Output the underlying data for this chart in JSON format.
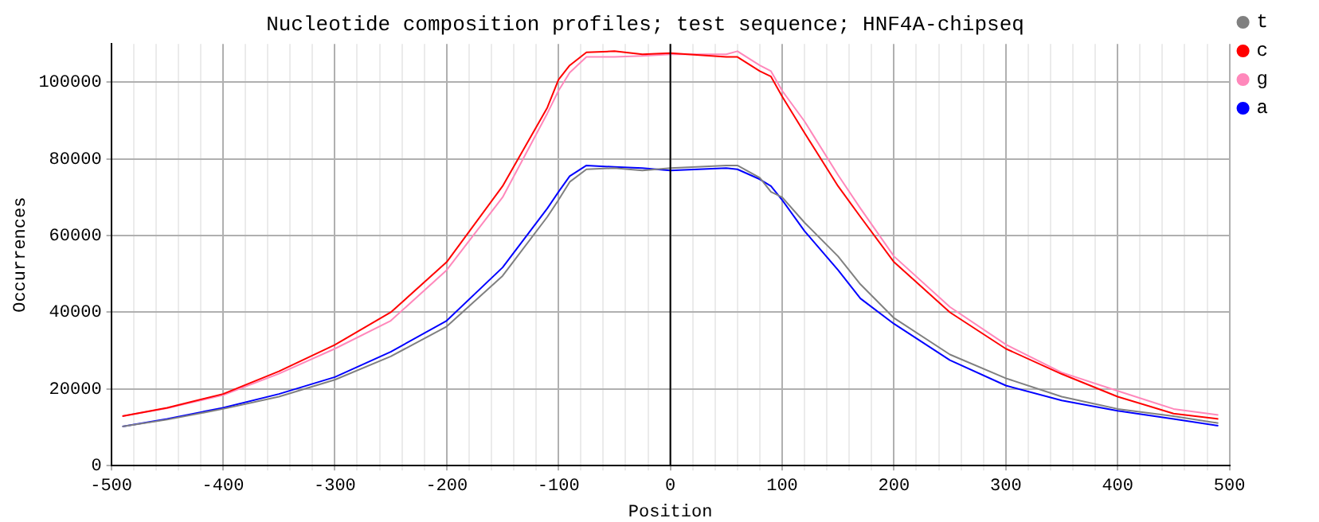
{
  "chart_data": {
    "type": "line",
    "title": "Nucleotide composition profiles; test sequence; HNF4A-chipseq",
    "xlabel": "Position",
    "ylabel": "Occurrences",
    "x": [
      -490,
      -450,
      -400,
      -350,
      -300,
      -250,
      -200,
      -150,
      -110,
      -100,
      -90,
      -75,
      -50,
      -25,
      0,
      50,
      60,
      80,
      90,
      100,
      120,
      150,
      170,
      200,
      250,
      300,
      350,
      400,
      450,
      490
    ],
    "series": [
      {
        "name": "t",
        "color": "#808080",
        "values": [
          10200,
          12000,
          14800,
          18000,
          22400,
          28500,
          36300,
          49500,
          64900,
          69300,
          74000,
          77300,
          77600,
          77000,
          77600,
          78300,
          78300,
          75100,
          71400,
          70000,
          63400,
          54600,
          47300,
          38500,
          29000,
          22800,
          18000,
          14800,
          12900,
          11100
        ]
      },
      {
        "name": "c",
        "color": "#ff0000",
        "values": [
          12900,
          15100,
          18700,
          24600,
          31500,
          40000,
          53100,
          72900,
          93400,
          100700,
          104400,
          107800,
          108100,
          107300,
          107600,
          106600,
          106600,
          102900,
          101500,
          96300,
          86800,
          72900,
          64900,
          53100,
          40000,
          30500,
          23900,
          18000,
          13600,
          12200
        ]
      },
      {
        "name": "g",
        "color": "#ff88bb",
        "values": [
          12900,
          15000,
          18400,
          24000,
          30500,
          37800,
          51000,
          70000,
          91900,
          97800,
          102500,
          106600,
          106600,
          106900,
          107300,
          107300,
          108100,
          104400,
          102900,
          97800,
          89800,
          75800,
          67100,
          54600,
          41400,
          31600,
          24300,
          19500,
          14800,
          13200
        ]
      },
      {
        "name": "a",
        "color": "#0000ff",
        "values": [
          10200,
          12200,
          15100,
          18700,
          23100,
          29700,
          37800,
          51700,
          67100,
          71400,
          75500,
          78300,
          77900,
          77600,
          77000,
          77600,
          77300,
          74700,
          72900,
          69300,
          61200,
          51000,
          43600,
          37000,
          27500,
          20900,
          17000,
          14300,
          12200,
          10400
        ]
      }
    ],
    "xlim": [
      -500,
      500
    ],
    "xticks": [
      -500,
      {
        "value": -480,
        "label": null
      },
      {
        "value": -460,
        "label": null
      },
      {
        "value": -440,
        "label": null
      },
      {
        "value": -420,
        "label": null
      },
      -400,
      {
        "value": -380,
        "label": null
      },
      {
        "value": -360,
        "label": null
      },
      {
        "value": -340,
        "label": null
      },
      {
        "value": -320,
        "label": null
      },
      -300,
      {
        "value": -280,
        "label": null
      },
      {
        "value": -260,
        "label": null
      },
      {
        "value": -240,
        "label": null
      },
      {
        "value": -220,
        "label": null
      },
      -200,
      {
        "value": -180,
        "label": null
      },
      {
        "value": -160,
        "label": null
      },
      {
        "value": -140,
        "label": null
      },
      {
        "value": -120,
        "label": null
      },
      -100,
      {
        "value": -80,
        "label": null
      },
      {
        "value": -60,
        "label": null
      },
      {
        "value": -40,
        "label": null
      },
      {
        "value": -20,
        "label": null
      },
      0,
      {
        "value": 20,
        "label": null
      },
      {
        "value": 40,
        "label": null
      },
      {
        "value": 60,
        "label": null
      },
      {
        "value": 80,
        "label": null
      },
      100,
      {
        "value": 120,
        "label": null
      },
      {
        "value": 140,
        "label": null
      },
      {
        "value": 160,
        "label": null
      },
      {
        "value": 180,
        "label": null
      },
      200,
      {
        "value": 220,
        "label": null
      },
      {
        "value": 240,
        "label": null
      },
      {
        "value": 260,
        "label": null
      },
      {
        "value": 280,
        "label": null
      },
      300,
      {
        "value": 320,
        "label": null
      },
      {
        "value": 340,
        "label": null
      },
      {
        "value": 360,
        "label": null
      },
      {
        "value": 380,
        "label": null
      },
      400,
      {
        "value": 420,
        "label": null
      },
      {
        "value": 440,
        "label": null
      },
      {
        "value": 460,
        "label": null
      },
      {
        "value": 480,
        "label": null
      },
      500
    ],
    "ylim": [
      0,
      110000
    ],
    "yticks": [
      0,
      20000,
      40000,
      60000,
      80000,
      100000
    ],
    "ref_lines": [
      {
        "axis": "x",
        "value": 0,
        "color": "#000000"
      }
    ],
    "grid": true,
    "legend": "top right",
    "marker": "none",
    "line_style": "solid"
  }
}
